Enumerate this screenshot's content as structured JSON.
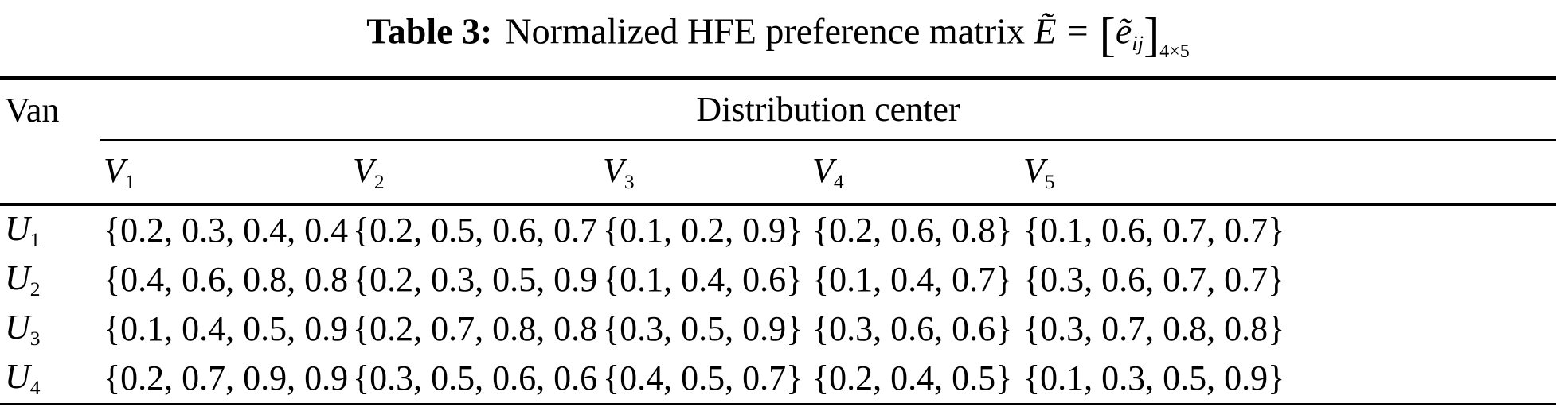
{
  "caption": {
    "label": "Table 3:",
    "title": "Normalized HFE preference matrix",
    "matrix_symbol": "Ẽ",
    "eq": "=",
    "bracket_open": "[",
    "entry_symbol": "ẽ",
    "entry_sub": "ij",
    "bracket_close": "]",
    "dims_sub": "4×5"
  },
  "table": {
    "corner_header": "Van",
    "group_header": "Distribution center",
    "columns": [
      {
        "base": "V",
        "sub": "1"
      },
      {
        "base": "V",
        "sub": "2"
      },
      {
        "base": "V",
        "sub": "3"
      },
      {
        "base": "V",
        "sub": "4"
      },
      {
        "base": "V",
        "sub": "5"
      }
    ],
    "rows": [
      {
        "base": "U",
        "sub": "1",
        "cells": [
          "{0.2, 0.3, 0.4, 0.4}",
          "{0.2, 0.5, 0.6, 0.7}",
          "{0.1, 0.2, 0.9}",
          "{0.2, 0.6, 0.8}",
          "{0.1, 0.6, 0.7, 0.7}"
        ]
      },
      {
        "base": "U",
        "sub": "2",
        "cells": [
          "{0.4, 0.6, 0.8, 0.8}",
          "{0.2, 0.3, 0.5, 0.9}",
          "{0.1, 0.4, 0.6}",
          "{0.1, 0.4, 0.7}",
          "{0.3, 0.6, 0.7, 0.7}"
        ]
      },
      {
        "base": "U",
        "sub": "3",
        "cells": [
          "{0.1, 0.4, 0.5, 0.9}",
          "{0.2, 0.7, 0.8, 0.8}",
          "{0.3, 0.5, 0.9}",
          "{0.3, 0.6, 0.6}",
          "{0.3, 0.7, 0.8, 0.8}"
        ]
      },
      {
        "base": "U",
        "sub": "4",
        "cells": [
          "{0.2, 0.7, 0.9, 0.9}",
          "{0.3, 0.5, 0.6, 0.6}",
          "{0.4, 0.5, 0.7}",
          "{0.2, 0.4, 0.5}",
          "{0.1, 0.3, 0.5, 0.9}"
        ]
      }
    ]
  }
}
